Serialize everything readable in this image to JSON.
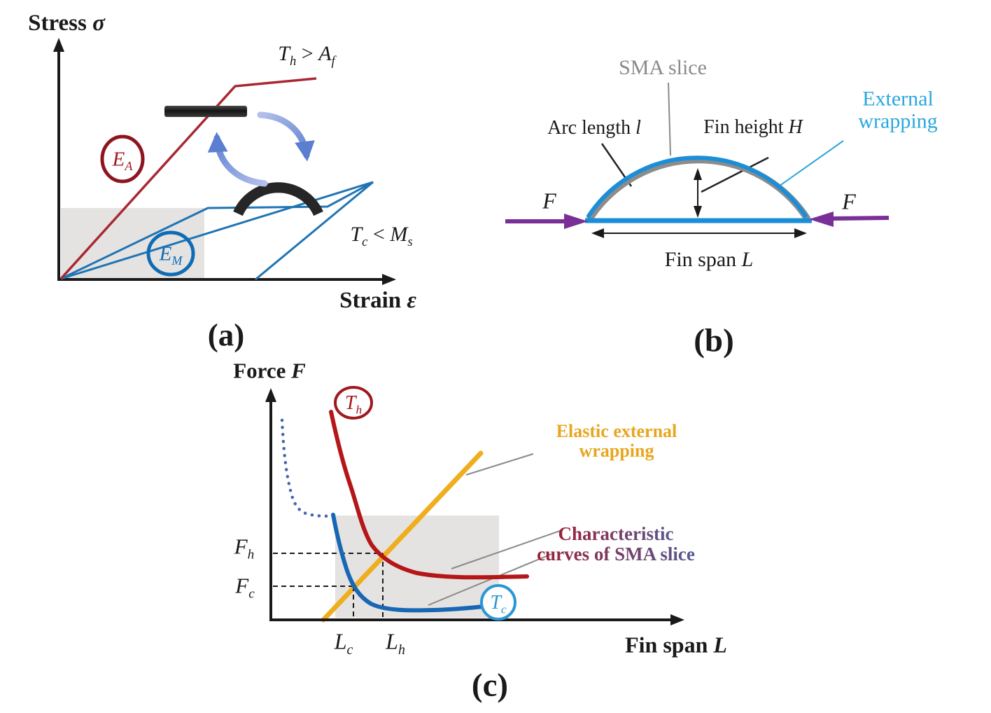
{
  "figure_title": "SMA slice fin schematic figure",
  "colors": {
    "red_curve": "#a82832",
    "dark_red": "#a01820",
    "blue_line": "#1f74b4",
    "bright_blue": "#1b8ed8",
    "cyan_label": "#2aa7dd",
    "purple_arrow": "#7a2f96",
    "yellow_line": "#efae1d",
    "yellow_label": "#e8a61e",
    "dotted_slate_blue": "#4565ae",
    "gray_box": "#e5e3e1",
    "gray_label": "#8a8a8a",
    "characteristic_gradient_left": "#9c2038",
    "characteristic_gradient_right": "#565a92"
  },
  "panel_a": {
    "caption": "(a)",
    "stress_axis": [
      {
        "t": "Stress "
      },
      {
        "t": "σ",
        "i": true
      }
    ],
    "strain_axis": [
      {
        "t": "Strain "
      },
      {
        "t": "ε",
        "i": true
      }
    ],
    "th_af": [
      {
        "t": "T",
        "i": true
      },
      {
        "t": "h",
        "sub": true,
        "i": true
      },
      {
        "t": " > "
      },
      {
        "t": "A",
        "i": true
      },
      {
        "t": "f",
        "sub": true,
        "i": true
      }
    ],
    "tc_ms": [
      {
        "t": "T",
        "i": true
      },
      {
        "t": "c",
        "sub": true,
        "i": true
      },
      {
        "t": " < "
      },
      {
        "t": "M",
        "i": true
      },
      {
        "t": "s",
        "sub": true,
        "i": true
      }
    ],
    "ea": [
      {
        "t": "E",
        "i": true
      },
      {
        "t": "A",
        "sub": true,
        "i": true
      }
    ],
    "em": [
      {
        "t": "E",
        "i": true
      },
      {
        "t": "M",
        "sub": true,
        "i": true
      }
    ]
  },
  "panel_b": {
    "caption": "(b)",
    "sma_slice": "SMA slice",
    "arc_length": [
      {
        "t": "Arc length "
      },
      {
        "t": "l",
        "i": true
      }
    ],
    "fin_height": [
      {
        "t": "Fin height "
      },
      {
        "t": "H",
        "i": true
      }
    ],
    "ext_line1": "External",
    "ext_line2": "wrapping",
    "force_left": [
      {
        "t": "F",
        "i": true
      }
    ],
    "force_right": [
      {
        "t": "F",
        "i": true
      }
    ],
    "fin_span": [
      {
        "t": "Fin span "
      },
      {
        "t": "L",
        "i": true
      }
    ]
  },
  "panel_c": {
    "caption": "(c)",
    "force_axis": [
      {
        "t": "Force "
      },
      {
        "t": "F",
        "i": true
      }
    ],
    "fin_span_axis": [
      {
        "t": "Fin span "
      },
      {
        "t": "L",
        "i": true
      }
    ],
    "th": [
      {
        "t": "T",
        "i": true
      },
      {
        "t": "h",
        "sub": true,
        "i": true
      }
    ],
    "tc": [
      {
        "t": "T",
        "i": true
      },
      {
        "t": "c",
        "sub": true,
        "i": true
      }
    ],
    "elastic_line1": "Elastic external",
    "elastic_line2": "wrapping",
    "char_line1": "Characteristic",
    "char_line2": "curves of SMA slice",
    "f_h": [
      {
        "t": "F",
        "i": true
      },
      {
        "t": "h",
        "sub": true,
        "i": true
      }
    ],
    "f_c": [
      {
        "t": "F",
        "i": true
      },
      {
        "t": "c",
        "sub": true,
        "i": true
      }
    ],
    "l_c": [
      {
        "t": "L",
        "i": true
      },
      {
        "t": "c",
        "sub": true,
        "i": true
      }
    ],
    "l_h": [
      {
        "t": "L",
        "i": true
      },
      {
        "t": "h",
        "sub": true,
        "i": true
      }
    ]
  }
}
